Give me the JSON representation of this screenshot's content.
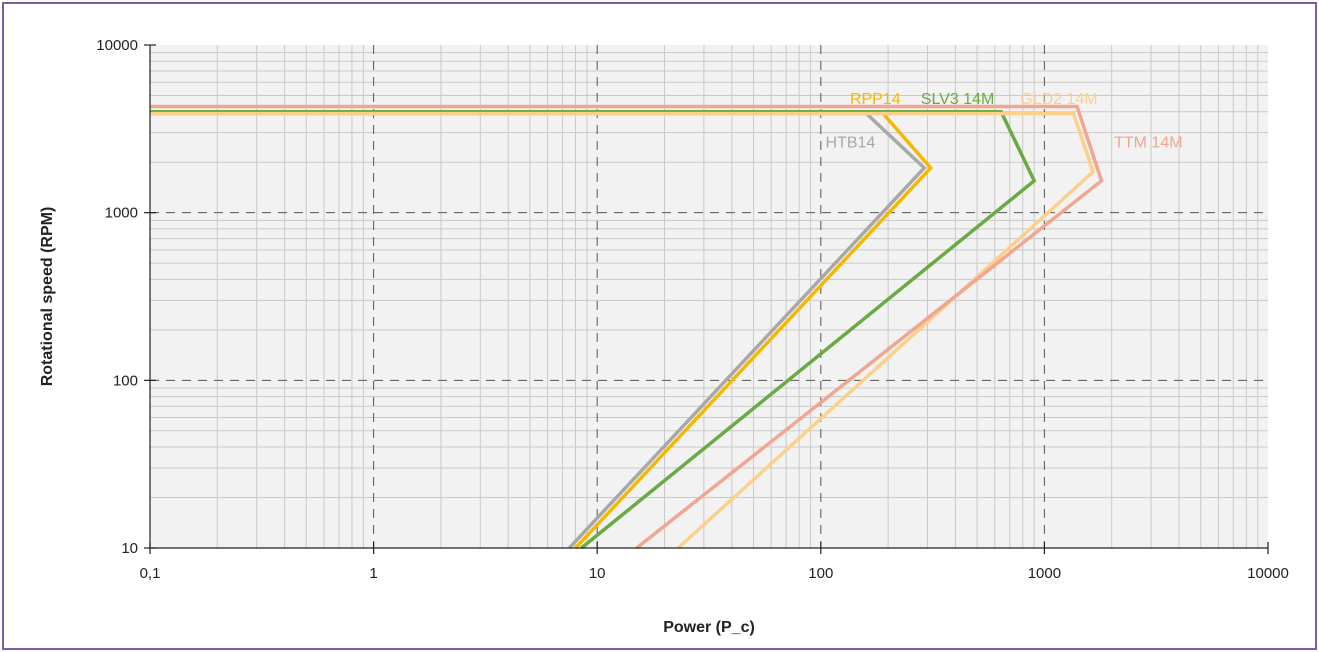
{
  "chart_data": {
    "type": "line",
    "title": "",
    "xlabel": "Power (P_c)",
    "ylabel": "Rotational speed (RPM)",
    "xscale": "log",
    "yscale": "log",
    "xlim": [
      0.1,
      10000
    ],
    "ylim": [
      10,
      10000
    ],
    "xticks": [
      0.1,
      1,
      10,
      100,
      1000,
      10000
    ],
    "xtick_labels": [
      "0,1",
      "1",
      "10",
      "100",
      "1000",
      "10000"
    ],
    "yticks": [
      10,
      100,
      1000,
      10000
    ],
    "ytick_labels": [
      "10",
      "100",
      "1000",
      "10000"
    ],
    "grid": true,
    "series": [
      {
        "name": "HTB14",
        "color": "#a8a8a8",
        "points": [
          [
            7.5,
            10
          ],
          [
            290,
            1850
          ],
          [
            160,
            3900
          ],
          [
            0.1,
            3900
          ]
        ]
      },
      {
        "name": "RPP14",
        "color": "#f5b800",
        "points": [
          [
            8,
            10
          ],
          [
            310,
            1850
          ],
          [
            190,
            3900
          ],
          [
            0.1,
            3900
          ]
        ]
      },
      {
        "name": "SLV3 14M",
        "color": "#6aaa44",
        "points": [
          [
            8.5,
            10
          ],
          [
            900,
            1550
          ],
          [
            640,
            4000
          ],
          [
            0.1,
            4000
          ]
        ]
      },
      {
        "name": "GLD2 14M",
        "color": "#fdd08a",
        "points": [
          [
            23,
            10
          ],
          [
            1650,
            1750
          ],
          [
            1350,
            3900
          ],
          [
            0.1,
            3900
          ]
        ]
      },
      {
        "name": "TTM 14M",
        "color": "#f0a690",
        "points": [
          [
            15,
            10
          ],
          [
            1800,
            1550
          ],
          [
            1400,
            4300
          ],
          [
            0.1,
            4300
          ]
        ]
      }
    ]
  }
}
